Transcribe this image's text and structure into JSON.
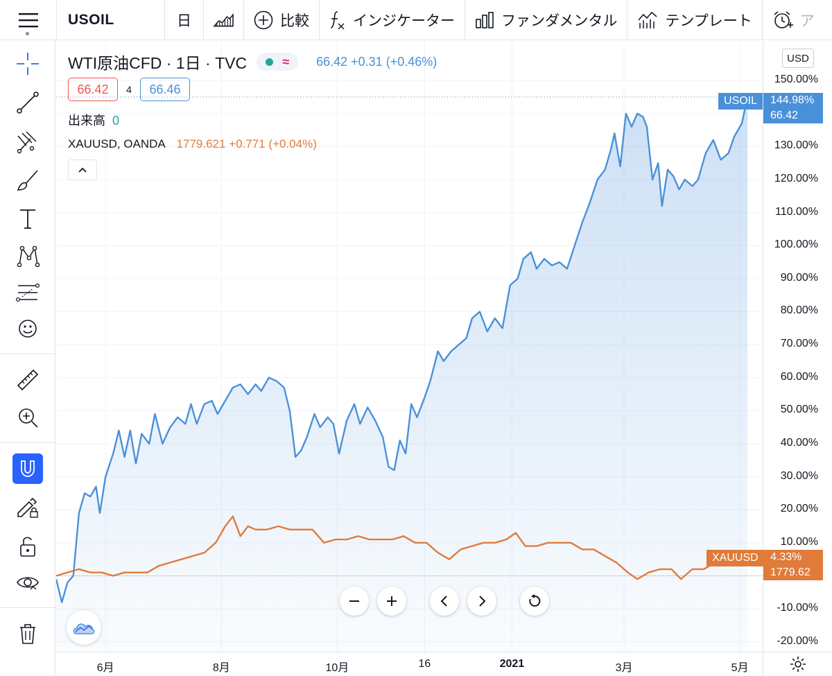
{
  "topbar": {
    "symbol": "USOIL",
    "interval": "日",
    "compare_label": "比較",
    "indicators_label": "インジケーター",
    "fundamentals_label": "ファンダメンタル",
    "templates_label": "テンプレート",
    "alert_label": "ア"
  },
  "legend": {
    "title": "WTI原油CFD · 1日 · TVC",
    "last": "66.42",
    "change": "+0.31",
    "change_pct": "(+0.46%)",
    "bid": "66.42",
    "spread": "4",
    "ask": "66.46",
    "volume_label": "出来高",
    "volume_value": "0",
    "compare_symbol": "XAUUSD, OANDA",
    "compare_last": "1779.621",
    "compare_change": "+0.771",
    "compare_change_pct": "(+0.04%)"
  },
  "price_scale": {
    "currency_button": "USD",
    "usoil_tag": "USOIL",
    "usoil_pct": "144.98%",
    "usoil_price": "66.42",
    "xauusd_tag": "XAUUSD",
    "xauusd_pct": "4.33%",
    "xauusd_price": "1779.62"
  },
  "colors": {
    "usoil": "#4a90d9",
    "xauusd": "#e07b39",
    "accent": "#2962ff"
  },
  "chart_data": {
    "type": "line",
    "scale": "percent",
    "y_ticks": [
      "150.00%",
      "140.00%",
      "130.00%",
      "120.00%",
      "110.00%",
      "100.00%",
      "90.00%",
      "80.00%",
      "70.00%",
      "60.00%",
      "50.00%",
      "40.00%",
      "30.00%",
      "20.00%",
      "10.00%",
      "0.00%",
      "-10.00%",
      "-20.00%"
    ],
    "x_ticks": [
      {
        "label": "6月",
        "bold": false,
        "date": "2020-06-01"
      },
      {
        "label": "8月",
        "bold": false,
        "date": "2020-08-01"
      },
      {
        "label": "10月",
        "bold": false,
        "date": "2020-10-01"
      },
      {
        "label": "16",
        "bold": false,
        "date": "2020-11-16"
      },
      {
        "label": "2021",
        "bold": true,
        "date": "2021-01-01"
      },
      {
        "label": "3月",
        "bold": false,
        "date": "2021-03-01"
      },
      {
        "label": "5月",
        "bold": false,
        "date": "2021-05-01"
      }
    ],
    "ylim": [
      -23,
      162
    ],
    "xlim": [
      "2020-05-06",
      "2021-05-13"
    ],
    "grid": true,
    "series": [
      {
        "name": "USOIL",
        "area": true,
        "points": [
          [
            "2020-05-06",
            -1
          ],
          [
            "2020-05-09",
            -8
          ],
          [
            "2020-05-12",
            -2
          ],
          [
            "2020-05-15",
            0
          ],
          [
            "2020-05-18",
            19
          ],
          [
            "2020-05-21",
            25
          ],
          [
            "2020-05-24",
            24
          ],
          [
            "2020-05-27",
            27
          ],
          [
            "2020-05-29",
            19
          ],
          [
            "2020-06-01",
            30
          ],
          [
            "2020-06-05",
            37
          ],
          [
            "2020-06-08",
            44
          ],
          [
            "2020-06-11",
            36
          ],
          [
            "2020-06-14",
            44
          ],
          [
            "2020-06-17",
            34
          ],
          [
            "2020-06-20",
            43
          ],
          [
            "2020-06-24",
            40
          ],
          [
            "2020-06-27",
            49
          ],
          [
            "2020-07-01",
            40
          ],
          [
            "2020-07-05",
            45
          ],
          [
            "2020-07-09",
            48
          ],
          [
            "2020-07-13",
            46
          ],
          [
            "2020-07-16",
            52
          ],
          [
            "2020-07-19",
            46
          ],
          [
            "2020-07-23",
            52
          ],
          [
            "2020-07-27",
            53
          ],
          [
            "2020-07-30",
            49
          ],
          [
            "2020-08-03",
            53
          ],
          [
            "2020-08-07",
            57
          ],
          [
            "2020-08-11",
            58
          ],
          [
            "2020-08-15",
            55
          ],
          [
            "2020-08-19",
            58
          ],
          [
            "2020-08-22",
            56
          ],
          [
            "2020-08-26",
            60
          ],
          [
            "2020-08-30",
            59
          ],
          [
            "2020-09-03",
            57
          ],
          [
            "2020-09-06",
            50
          ],
          [
            "2020-09-09",
            36
          ],
          [
            "2020-09-12",
            38
          ],
          [
            "2020-09-15",
            42
          ],
          [
            "2020-09-19",
            49
          ],
          [
            "2020-09-22",
            45
          ],
          [
            "2020-09-26",
            48
          ],
          [
            "2020-09-29",
            46
          ],
          [
            "2020-10-02",
            37
          ],
          [
            "2020-10-06",
            47
          ],
          [
            "2020-10-10",
            52
          ],
          [
            "2020-10-13",
            46
          ],
          [
            "2020-10-17",
            51
          ],
          [
            "2020-10-21",
            47
          ],
          [
            "2020-10-25",
            42
          ],
          [
            "2020-10-28",
            33
          ],
          [
            "2020-10-31",
            32
          ],
          [
            "2020-11-03",
            41
          ],
          [
            "2020-11-06",
            37
          ],
          [
            "2020-11-09",
            52
          ],
          [
            "2020-11-12",
            48
          ],
          [
            "2020-11-16",
            54
          ],
          [
            "2020-11-19",
            59
          ],
          [
            "2020-11-23",
            68
          ],
          [
            "2020-11-26",
            65
          ],
          [
            "2020-11-30",
            68
          ],
          [
            "2020-12-04",
            70
          ],
          [
            "2020-12-08",
            72
          ],
          [
            "2020-12-11",
            78
          ],
          [
            "2020-12-15",
            80
          ],
          [
            "2020-12-19",
            74
          ],
          [
            "2020-12-23",
            78
          ],
          [
            "2020-12-27",
            75
          ],
          [
            "2020-12-31",
            88
          ],
          [
            "2021-01-04",
            90
          ],
          [
            "2021-01-07",
            96
          ],
          [
            "2021-01-11",
            98
          ],
          [
            "2021-01-14",
            93
          ],
          [
            "2021-01-18",
            96
          ],
          [
            "2021-01-22",
            94
          ],
          [
            "2021-01-26",
            95
          ],
          [
            "2021-01-30",
            93
          ],
          [
            "2021-02-03",
            100
          ],
          [
            "2021-02-07",
            107
          ],
          [
            "2021-02-11",
            113
          ],
          [
            "2021-02-15",
            120
          ],
          [
            "2021-02-19",
            123
          ],
          [
            "2021-02-22",
            129
          ],
          [
            "2021-02-24",
            134
          ],
          [
            "2021-02-27",
            124
          ],
          [
            "2021-03-02",
            140
          ],
          [
            "2021-03-05",
            136
          ],
          [
            "2021-03-08",
            140
          ],
          [
            "2021-03-11",
            139
          ],
          [
            "2021-03-13",
            136
          ],
          [
            "2021-03-16",
            120
          ],
          [
            "2021-03-19",
            125
          ],
          [
            "2021-03-21",
            112
          ],
          [
            "2021-03-24",
            123
          ],
          [
            "2021-03-27",
            121
          ],
          [
            "2021-03-30",
            117
          ],
          [
            "2021-04-02",
            120
          ],
          [
            "2021-04-06",
            118
          ],
          [
            "2021-04-09",
            120
          ],
          [
            "2021-04-13",
            128
          ],
          [
            "2021-04-17",
            132
          ],
          [
            "2021-04-21",
            126
          ],
          [
            "2021-04-25",
            128
          ],
          [
            "2021-04-28",
            133
          ],
          [
            "2021-05-02",
            137
          ],
          [
            "2021-05-05",
            145
          ]
        ]
      },
      {
        "name": "XAUUSD",
        "area": false,
        "points": [
          [
            "2020-05-06",
            0
          ],
          [
            "2020-05-12",
            1
          ],
          [
            "2020-05-18",
            2
          ],
          [
            "2020-05-24",
            1
          ],
          [
            "2020-05-30",
            1
          ],
          [
            "2020-06-05",
            0
          ],
          [
            "2020-06-11",
            1
          ],
          [
            "2020-06-17",
            1
          ],
          [
            "2020-06-23",
            1
          ],
          [
            "2020-06-29",
            3
          ],
          [
            "2020-07-05",
            4
          ],
          [
            "2020-07-11",
            5
          ],
          [
            "2020-07-17",
            6
          ],
          [
            "2020-07-23",
            7
          ],
          [
            "2020-07-29",
            10
          ],
          [
            "2020-08-03",
            15
          ],
          [
            "2020-08-07",
            18
          ],
          [
            "2020-08-11",
            12
          ],
          [
            "2020-08-15",
            15
          ],
          [
            "2020-08-19",
            14
          ],
          [
            "2020-08-25",
            14
          ],
          [
            "2020-08-31",
            15
          ],
          [
            "2020-09-06",
            14
          ],
          [
            "2020-09-12",
            14
          ],
          [
            "2020-09-18",
            14
          ],
          [
            "2020-09-24",
            10
          ],
          [
            "2020-09-30",
            11
          ],
          [
            "2020-10-06",
            11
          ],
          [
            "2020-10-12",
            12
          ],
          [
            "2020-10-18",
            11
          ],
          [
            "2020-10-24",
            11
          ],
          [
            "2020-10-30",
            11
          ],
          [
            "2020-11-05",
            12
          ],
          [
            "2020-11-11",
            10
          ],
          [
            "2020-11-17",
            10
          ],
          [
            "2020-11-23",
            7
          ],
          [
            "2020-11-29",
            5
          ],
          [
            "2020-12-05",
            8
          ],
          [
            "2020-12-11",
            9
          ],
          [
            "2020-12-17",
            10
          ],
          [
            "2020-12-23",
            10
          ],
          [
            "2020-12-29",
            11
          ],
          [
            "2021-01-03",
            13
          ],
          [
            "2021-01-08",
            9
          ],
          [
            "2021-01-14",
            9
          ],
          [
            "2021-01-20",
            10
          ],
          [
            "2021-01-26",
            10
          ],
          [
            "2021-02-01",
            10
          ],
          [
            "2021-02-07",
            8
          ],
          [
            "2021-02-13",
            8
          ],
          [
            "2021-02-19",
            6
          ],
          [
            "2021-02-25",
            4
          ],
          [
            "2021-03-03",
            1
          ],
          [
            "2021-03-08",
            -1
          ],
          [
            "2021-03-14",
            1
          ],
          [
            "2021-03-20",
            2
          ],
          [
            "2021-03-26",
            2
          ],
          [
            "2021-03-31",
            -1
          ],
          [
            "2021-04-06",
            2
          ],
          [
            "2021-04-12",
            2
          ],
          [
            "2021-04-18",
            4
          ],
          [
            "2021-04-24",
            4
          ],
          [
            "2021-04-30",
            4
          ],
          [
            "2021-05-05",
            4.33
          ]
        ]
      }
    ]
  }
}
